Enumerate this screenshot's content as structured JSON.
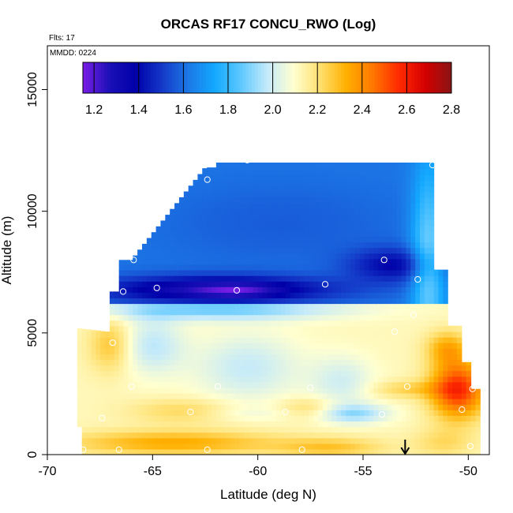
{
  "chart_data": {
    "type": "heatmap",
    "title": "ORCAS RF17 CONCU_RWO (Log)",
    "flights_label": "Flts: 17",
    "mmdd_label": "MMDD: 0224",
    "xlabel": "Latitude (deg N)",
    "ylabel": "Altitude (m)",
    "xlim": [
      -70,
      -49
    ],
    "ylim": [
      0,
      16800
    ],
    "x_ticks": [
      -70,
      -65,
      -60,
      -55,
      -50
    ],
    "x_tick_labels": [
      "-70",
      "-65",
      "-60",
      "-55",
      "-50"
    ],
    "y_ticks": [
      0,
      5000,
      10000,
      15000
    ],
    "y_tick_labels": [
      "0",
      "5000",
      "10000",
      "15000"
    ],
    "colorbar": {
      "range": [
        1.15,
        2.8
      ],
      "ticks": [
        1.2,
        1.4,
        1.6,
        1.8,
        2.0,
        2.2,
        2.4,
        2.6,
        2.8
      ],
      "tick_labels": [
        "1.2",
        "1.4",
        "1.6",
        "1.8",
        "2.0",
        "2.2",
        "2.4",
        "2.6",
        "2.8"
      ],
      "colors": [
        "#7a1ee6",
        "#1c10b8",
        "#0000a8",
        "#1438c8",
        "#1c78e6",
        "#12a8ff",
        "#5ec8ff",
        "#c4eafa",
        "#ffffd0",
        "#ffe070",
        "#ffb000",
        "#ff7800",
        "#ff2a00",
        "#d40000",
        "#8a1414"
      ]
    },
    "grid": false,
    "arrow_marker_lat": -53,
    "sample_points": [
      {
        "lat": -68.3,
        "alt": 200
      },
      {
        "lat": -66.6,
        "alt": 200
      },
      {
        "lat": -62.4,
        "alt": 200
      },
      {
        "lat": -57.9,
        "alt": 200
      },
      {
        "lat": -67.4,
        "alt": 1500
      },
      {
        "lat": -63.2,
        "alt": 1750
      },
      {
        "lat": -58.7,
        "alt": 1750
      },
      {
        "lat": -54.1,
        "alt": 1650
      },
      {
        "lat": -50.3,
        "alt": 1850
      },
      {
        "lat": -66.0,
        "alt": 2800
      },
      {
        "lat": -61.9,
        "alt": 2800
      },
      {
        "lat": -57.5,
        "alt": 2750
      },
      {
        "lat": -52.9,
        "alt": 2800
      },
      {
        "lat": -49.8,
        "alt": 2700
      },
      {
        "lat": -66.9,
        "alt": 4600
      },
      {
        "lat": -53.5,
        "alt": 5050
      },
      {
        "lat": -52.6,
        "alt": 5750
      },
      {
        "lat": -66.4,
        "alt": 6700
      },
      {
        "lat": -64.8,
        "alt": 6850
      },
      {
        "lat": -61.0,
        "alt": 6750
      },
      {
        "lat": -56.8,
        "alt": 7000
      },
      {
        "lat": -52.4,
        "alt": 7200
      },
      {
        "lat": -65.9,
        "alt": 8000
      },
      {
        "lat": -54.0,
        "alt": 8000
      },
      {
        "lat": -62.4,
        "alt": 11300
      },
      {
        "lat": -60.5,
        "alt": 12100
      },
      {
        "lat": -51.7,
        "alt": 11900
      },
      {
        "lat": -49.9,
        "alt": 350
      }
    ],
    "field_description_points": []
  }
}
